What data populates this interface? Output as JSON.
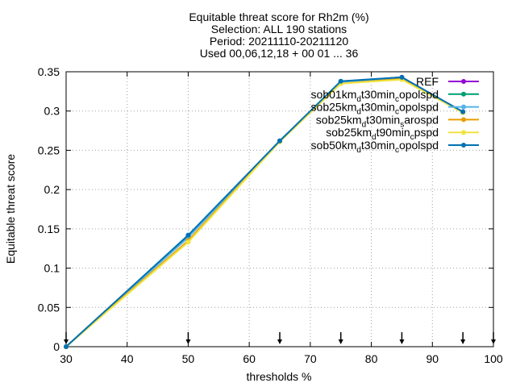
{
  "chart_data": {
    "type": "line",
    "title_lines": [
      "Equitable threat score  for Rh2m (%)",
      "Selection: ALL    190 stations",
      "Period: 20211110-20211120",
      "Used 00,06,12,18 + 00 01 ... 36"
    ],
    "xlabel": "thresholds %",
    "ylabel": "Equitable threat score",
    "xlim": [
      30,
      100
    ],
    "ylim": [
      0,
      0.35
    ],
    "xticks": [
      "30",
      "40",
      "50",
      "60",
      "70",
      "80",
      "90",
      "100"
    ],
    "yticks": [
      "0",
      "0.05",
      "0.1",
      "0.15",
      "0.2",
      "0.25",
      "0.3",
      "0.35"
    ],
    "grid": true,
    "legend_position": "top-right",
    "x": [
      30,
      50,
      65,
      75,
      85,
      95
    ],
    "arrow_x": [
      30,
      50,
      65,
      75,
      85,
      95,
      100
    ],
    "series": [
      {
        "name": "REF",
        "label_main": "REF",
        "sub_a": "",
        "mid": "",
        "sub_b": "",
        "tail": "",
        "color": "#9400d3",
        "values": [
          0.0,
          0.141,
          0.262,
          0.337,
          0.343,
          0.299
        ]
      },
      {
        "name": "sob01kmdt30mincopolspd",
        "label_main": "sob01km",
        "sub_a": "d",
        "mid": "t30min",
        "sub_b": "c",
        "tail": "opolspd",
        "color": "#009e73",
        "values": [
          0.0,
          0.14,
          0.262,
          0.337,
          0.342,
          0.299
        ]
      },
      {
        "name": "sob25kmdt30mincopolspd",
        "label_main": "sob25km",
        "sub_a": "d",
        "mid": "t30min",
        "sub_b": "c",
        "tail": "opolspd",
        "color": "#56b4e9",
        "values": [
          0.0,
          0.139,
          0.262,
          0.336,
          0.342,
          0.299
        ]
      },
      {
        "name": "sob25kmdt30minsarospd",
        "label_main": "sob25km",
        "sub_a": "d",
        "mid": "t30min",
        "sub_b": "s",
        "tail": "arospd",
        "color": "#e69f00",
        "values": [
          0.0,
          0.135,
          0.261,
          0.335,
          0.341,
          0.298
        ]
      },
      {
        "name": "sob25kmdt90mincpspd",
        "label_main": "sob25km",
        "sub_a": "d",
        "mid": "t90min",
        "sub_b": "c",
        "tail": "pspd",
        "color": "#f0e442",
        "values": [
          0.0,
          0.133,
          0.261,
          0.335,
          0.34,
          0.298
        ]
      },
      {
        "name": "sob50kmdt30mincopolspd",
        "label_main": "sob50km",
        "sub_a": "d",
        "mid": "t30min",
        "sub_b": "c",
        "tail": "opolspd",
        "color": "#0072b2",
        "values": [
          0.0,
          0.142,
          0.262,
          0.338,
          0.343,
          0.299
        ]
      }
    ]
  }
}
